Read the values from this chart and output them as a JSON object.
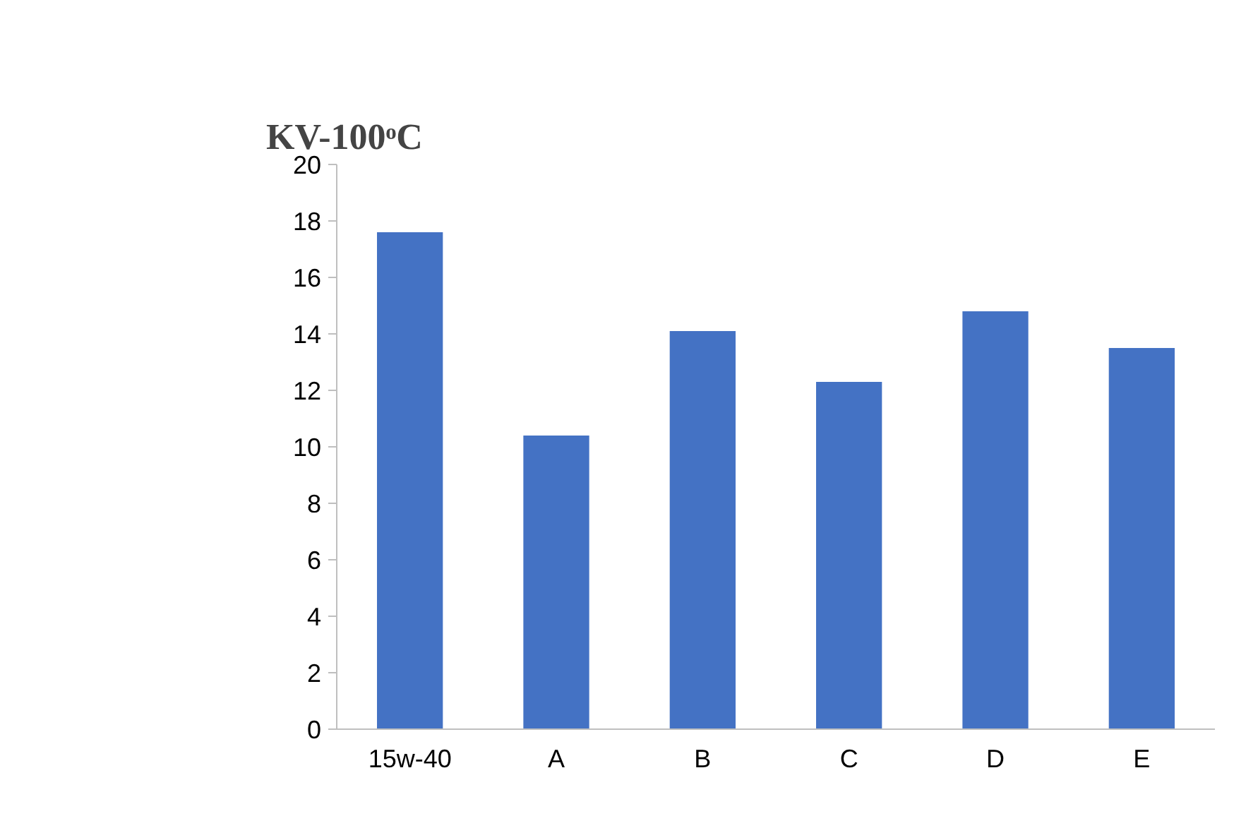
{
  "chart_data": {
    "type": "bar",
    "title": "KV-100ᵒC",
    "categories": [
      "15w-40",
      "A",
      "B",
      "C",
      "D",
      "E"
    ],
    "values": [
      17.6,
      10.4,
      14.1,
      12.3,
      14.8,
      13.5
    ],
    "color": "#4472c4",
    "ylim": [
      0,
      20
    ],
    "yticks": [
      0,
      2,
      4,
      6,
      8,
      10,
      12,
      14,
      16,
      18,
      20
    ],
    "grid": false
  }
}
